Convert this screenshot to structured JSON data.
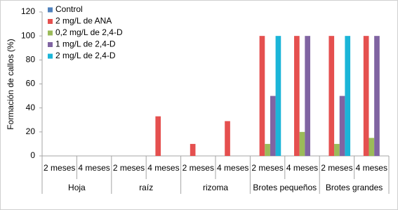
{
  "chart_data": {
    "type": "bar",
    "y_label": "Formación de callos (%)",
    "groups": [
      {
        "label": "Hoja",
        "categories": [
          "2 meses",
          "4 meses"
        ]
      },
      {
        "label": "raíz",
        "categories": [
          "2 meses",
          "4 meses"
        ]
      },
      {
        "label": "rizoma",
        "categories": [
          "2 meses",
          "4 meses"
        ]
      },
      {
        "label": "Brotes pequeños",
        "categories": [
          "2 meses",
          "4 meses"
        ]
      },
      {
        "label": "Brotes grandes",
        "categories": [
          "2 meses",
          "4 meses"
        ]
      }
    ],
    "series": [
      {
        "name": "Control",
        "color": "#4f81bd",
        "values": [
          0,
          0,
          0,
          0,
          0,
          0,
          0,
          0,
          0,
          0
        ]
      },
      {
        "name": "2 mg/L de ANA",
        "color": "#e5504f",
        "values": [
          0,
          0,
          0,
          33,
          10,
          29,
          100,
          100,
          100,
          100
        ]
      },
      {
        "name": "0,2 mg/L de 2,4-D",
        "color": "#9bbb59",
        "values": [
          0,
          0,
          0,
          0,
          0,
          0,
          10,
          20,
          10,
          15
        ]
      },
      {
        "name": "1 mg/L de 2,4-D",
        "color": "#8064a2",
        "values": [
          0,
          0,
          0,
          0,
          0,
          0,
          50,
          100,
          50,
          100
        ]
      },
      {
        "name": "2 mg/L de 2,4-D",
        "color": "#1bb5d8",
        "values": [
          0,
          0,
          0,
          0,
          0,
          0,
          100,
          0,
          100,
          0
        ]
      }
    ],
    "ylim": [
      0,
      120
    ],
    "yticks": [
      0,
      20,
      40,
      60,
      80,
      100,
      120
    ],
    "legend": "top-left"
  }
}
